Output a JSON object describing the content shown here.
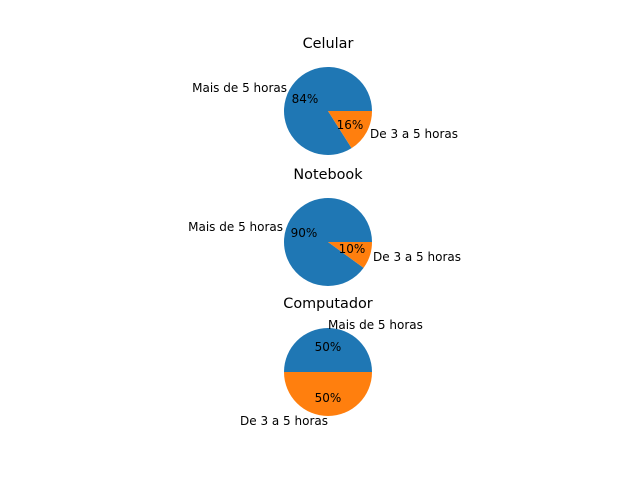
{
  "colors": {
    "series_0": "#1f77b4",
    "series_1": "#ff7f0e"
  },
  "chart_data": [
    {
      "type": "pie",
      "title": "Celular",
      "labels": [
        "Mais de 5 horas",
        "De 3 a 5 horas"
      ],
      "values": [
        84,
        16
      ],
      "autopct": [
        "84%",
        "16%"
      ]
    },
    {
      "type": "pie",
      "title": "Notebook",
      "labels": [
        "Mais de 5 horas",
        "De 3 a 5 horas"
      ],
      "values": [
        90,
        10
      ],
      "autopct": [
        "90%",
        "10%"
      ]
    },
    {
      "type": "pie",
      "title": "Computador",
      "labels": [
        "Mais de 5 horas",
        "De 3 a 5 horas"
      ],
      "values": [
        50,
        50
      ],
      "autopct": [
        "50%",
        "50%"
      ]
    }
  ]
}
